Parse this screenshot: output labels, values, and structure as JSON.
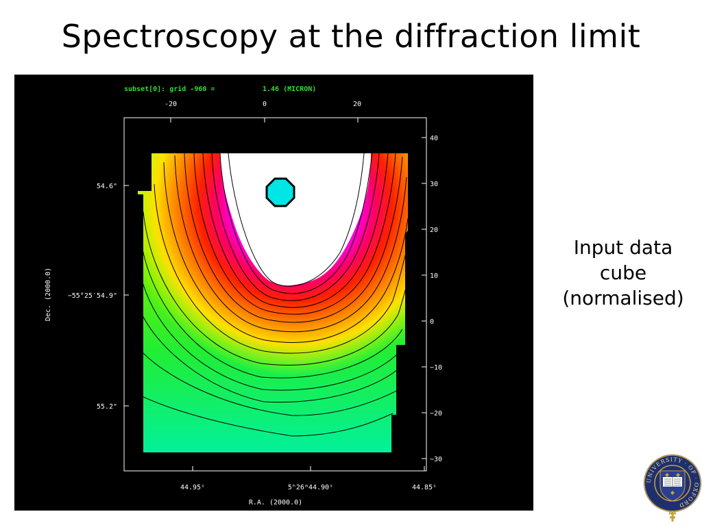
{
  "slide": {
    "title": "Spectroscopy at the diffraction limit",
    "caption_lines": [
      "Input data",
      "cube",
      "(normalised)"
    ]
  },
  "figure": {
    "header_left": "subset[0]: grid -960 =",
    "header_right": "1.46 (MICRON)",
    "top_ticks": [
      "-20",
      "0",
      "20"
    ],
    "right_ticks": [
      "40",
      "30",
      "20",
      "10",
      "0",
      "−10",
      "−20",
      "−30"
    ],
    "left_ticks": [
      "54.6\"",
      "−55°25′54.9\"",
      "55.2\""
    ],
    "bottom_ticks": [
      "44.95ˢ",
      "5ʰ26ᵐ44.90ˢ",
      "44.85ˢ"
    ],
    "ylabel": "Dec. (2000.0)",
    "xlabel": "R.A. (2000.0)",
    "colors": {
      "background": "#000000",
      "frame": "#ffffff",
      "header": "#33dd33",
      "marker": "#00e5e5"
    }
  },
  "logo": {
    "name": "oxford-university-crest",
    "ring_text": "UNIVERSITY · OF · OXFORD",
    "book_text": "DOMI NUS ILLU MINA TIO MEA",
    "colors": {
      "ring": "#1f2f6e",
      "gold": "#c8a23a",
      "shield": "#2a3f8f"
    }
  }
}
